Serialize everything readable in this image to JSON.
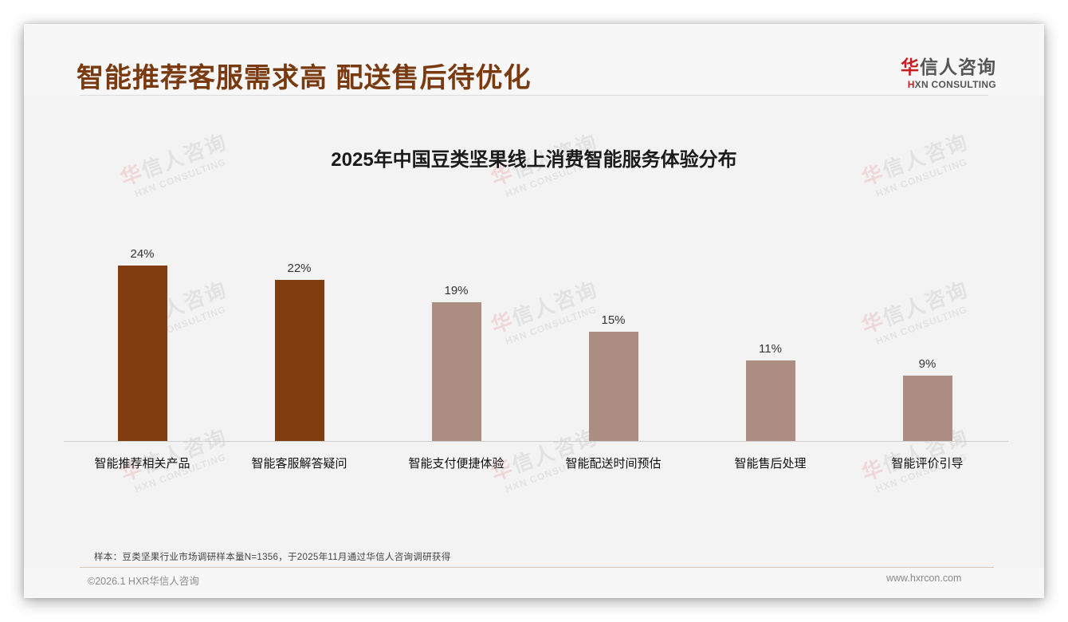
{
  "header": {
    "title": "智能推荐客服需求高 配送售后待优化",
    "logo": {
      "cn_first": "华",
      "cn_rest": "信人咨询",
      "en_first": "H",
      "en_rest": "XN CONSULTING"
    }
  },
  "watermark": {
    "cn_first": "华",
    "cn_rest": "信人咨询",
    "en": "HXN CONSULTING"
  },
  "colors": {
    "title": "#7a3a10",
    "bar_highlight": "#7f3d10",
    "bar_normal": "#ac8d82",
    "background": "#f3f3f3",
    "logo_red": "#c81e1e"
  },
  "chart_data": {
    "type": "bar",
    "title": "2025年中国豆类坚果线上消费智能服务体验分布",
    "categories": [
      "智能推荐相关产品",
      "智能客服解答疑问",
      "智能支付便捷体验",
      "智能配送时间预估",
      "智能售后处理",
      "智能评价引导"
    ],
    "values": [
      24,
      22,
      19,
      15,
      11,
      9
    ],
    "value_labels": [
      "24%",
      "22%",
      "19%",
      "15%",
      "11%",
      "9%"
    ],
    "highlighted": [
      true,
      true,
      false,
      false,
      false,
      false
    ],
    "unit": "%",
    "xlabel": "",
    "ylabel": "",
    "ylim": [
      0,
      31
    ],
    "grid": false,
    "legend": "none"
  },
  "footer": {
    "note": "样本：豆类坚果行业市场调研样本量N=1356，于2025年11月通过华信人咨询调研获得",
    "copyright": "©2026.1 HXR华信人咨询",
    "website": "www.hxrcon.com"
  }
}
